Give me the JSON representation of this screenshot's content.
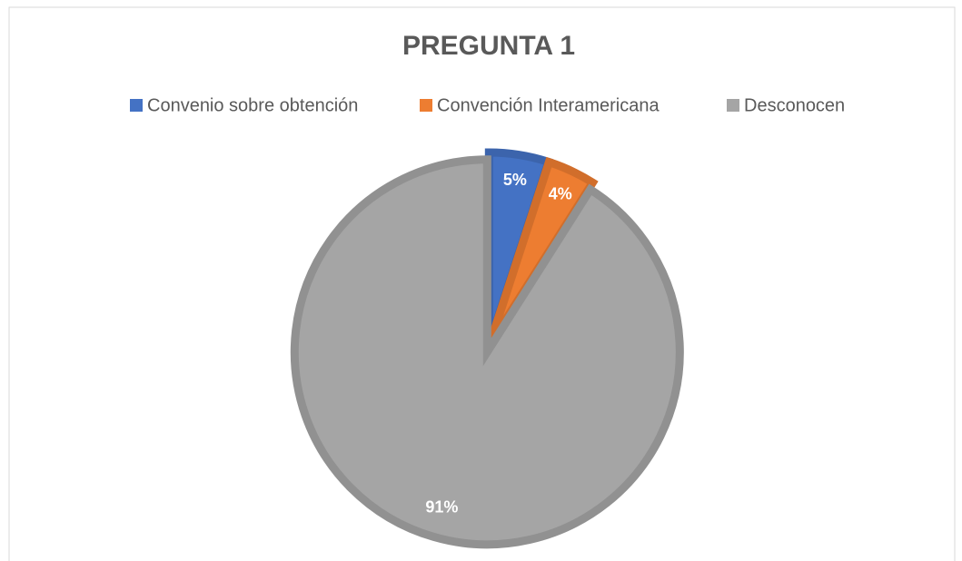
{
  "chart_data": {
    "type": "pie",
    "title": "PREGUNTA 1",
    "categories": [
      "Convenio sobre obtención",
      "Convención Interamericana",
      "Desconocen"
    ],
    "values": [
      5,
      4,
      91
    ],
    "value_labels": [
      "5%",
      "4%",
      "91%"
    ],
    "colors": [
      "#4472c4",
      "#ed7d31",
      "#a5a5a5"
    ],
    "legend": "top"
  }
}
